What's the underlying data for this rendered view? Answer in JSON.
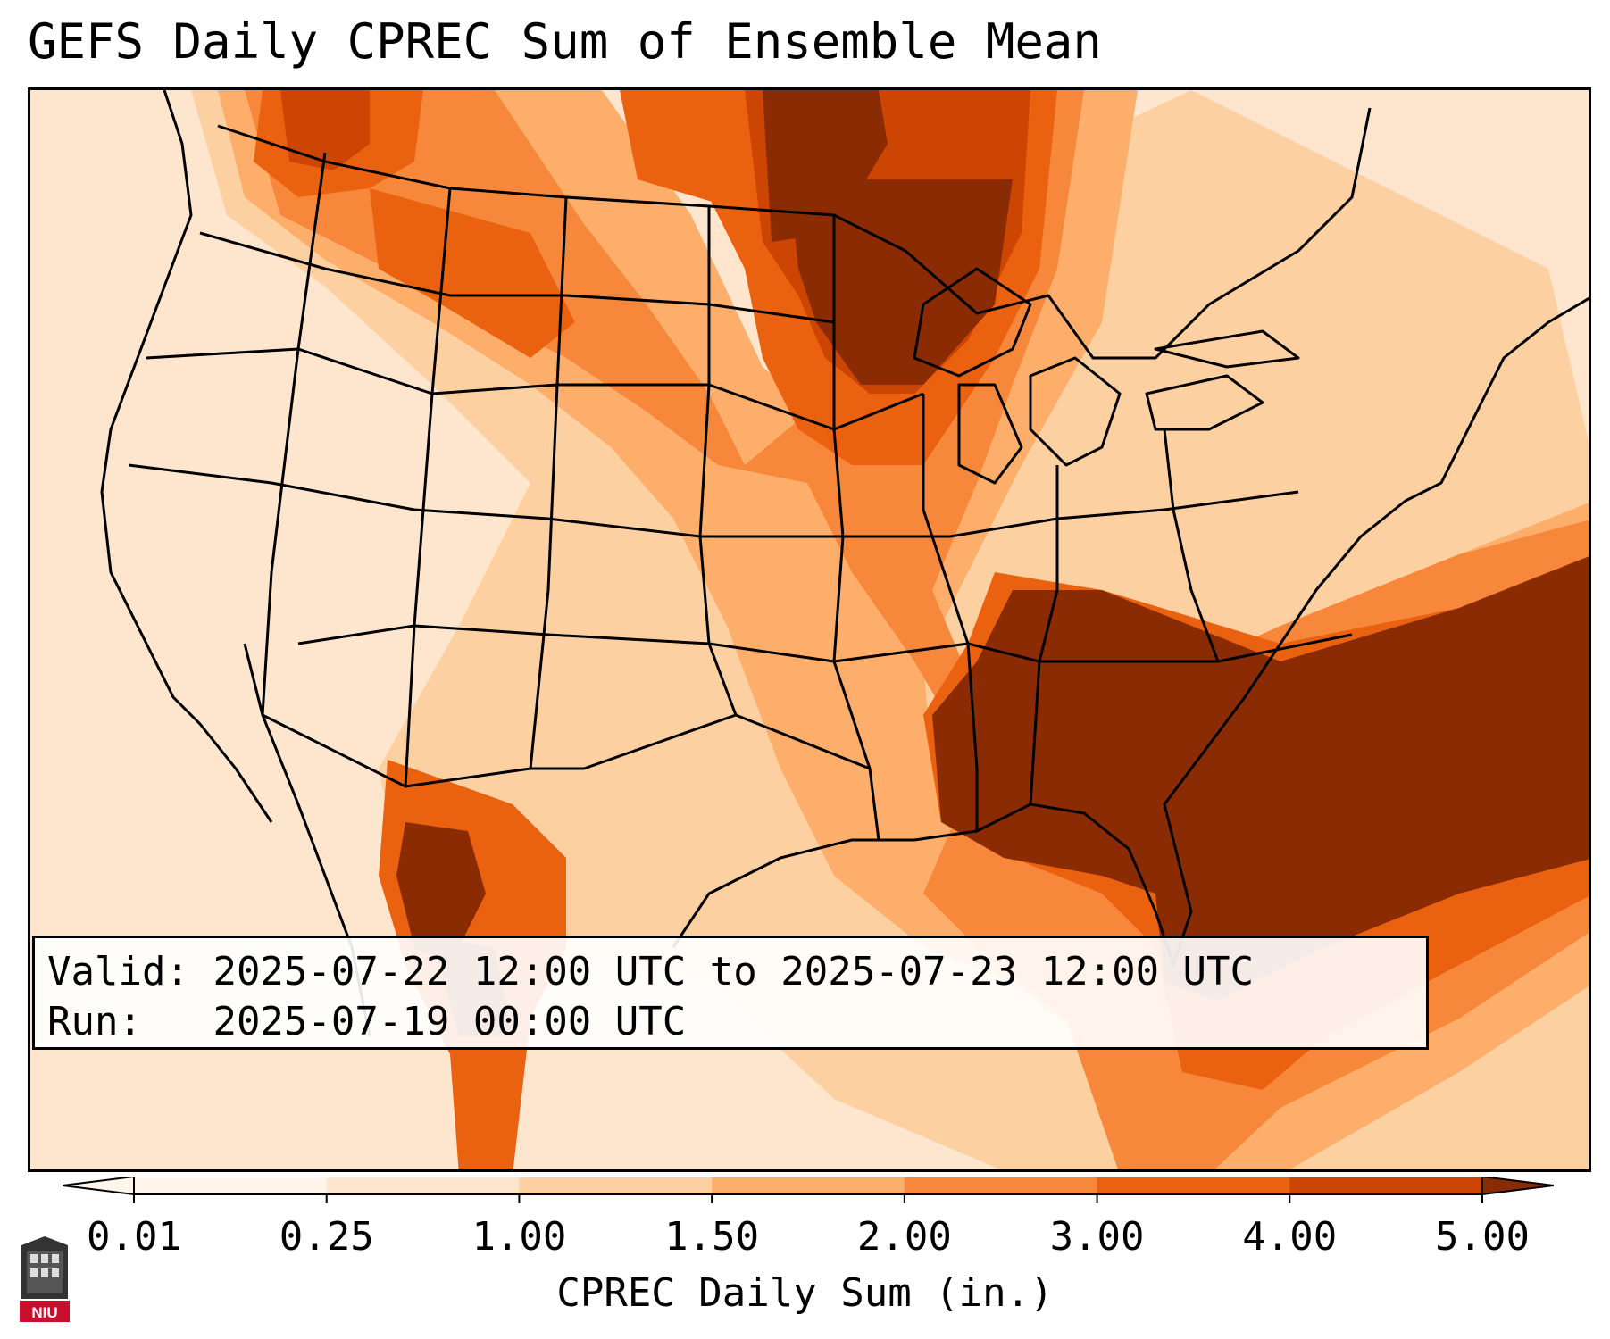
{
  "title": "GEFS Daily CPREC Sum of Ensemble Mean",
  "info": {
    "valid_label": "Valid:",
    "valid_value": "2025-07-22 12:00 UTC to 2025-07-23 12:00 UTC",
    "run_label": "Run:",
    "run_value": "2025-07-19 00:00 UTC"
  },
  "colorbar": {
    "label": "CPREC Daily Sum (in.)",
    "ticks": [
      "0.01",
      "0.25",
      "1.00",
      "1.50",
      "2.00",
      "3.00",
      "4.00",
      "5.00"
    ],
    "levels": [
      0.01,
      0.25,
      1.0,
      1.5,
      2.0,
      3.0,
      4.0,
      5.0
    ],
    "colors": [
      "#fff5eb",
      "#fee6ce",
      "#fdd0a2",
      "#fdae6b",
      "#f7883b",
      "#ea6210",
      "#cc4502",
      "#8a2b04"
    ],
    "extend": "both"
  },
  "logo": {
    "text": "NIU",
    "icon": "university-tower-icon"
  },
  "map": {
    "projection": "lambert-conformal",
    "region": "CONUS",
    "field": "convective precipitation daily sum"
  }
}
